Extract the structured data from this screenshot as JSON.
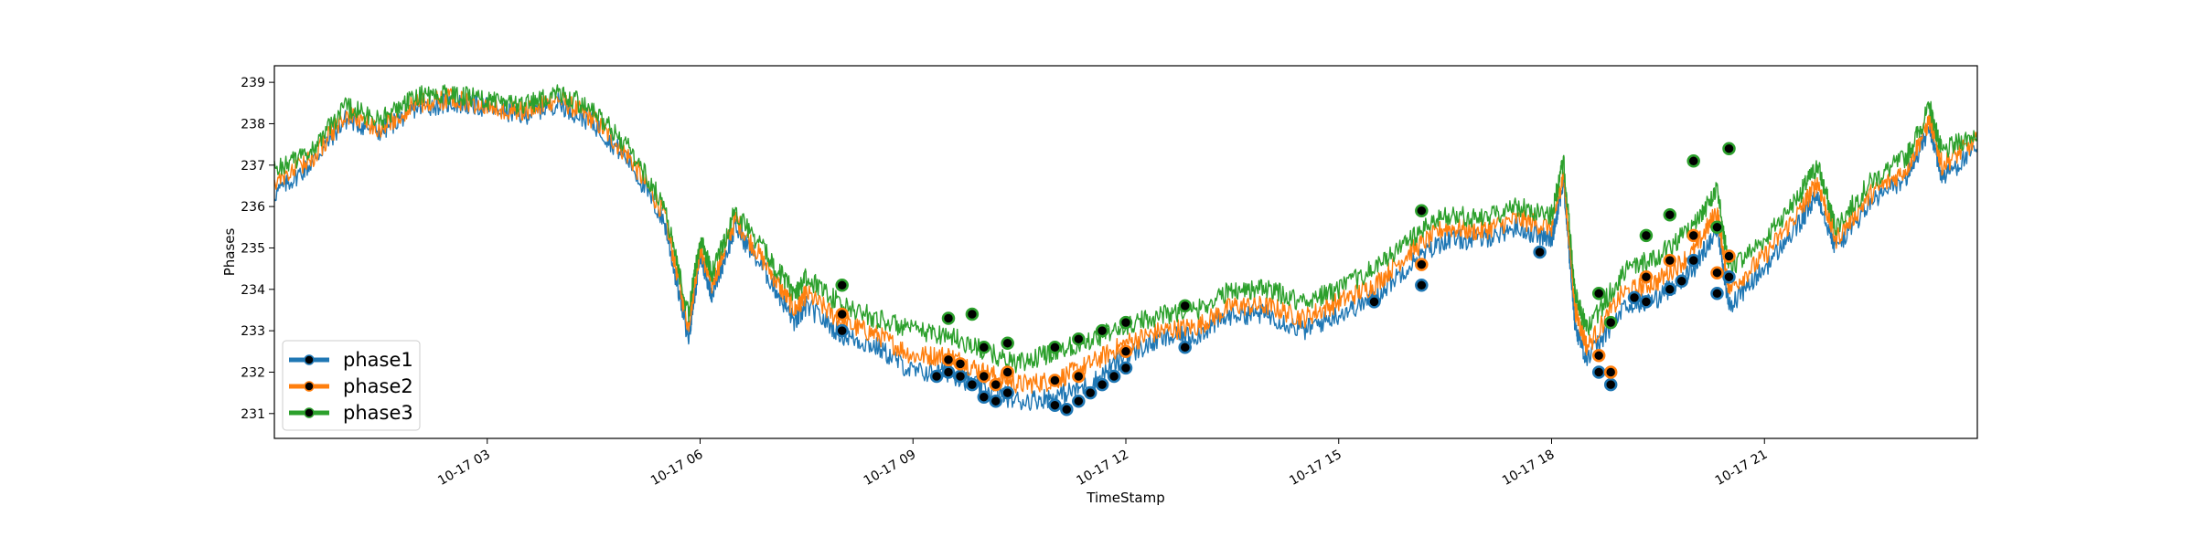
{
  "chart_data": {
    "type": "line",
    "title": "",
    "xlabel": "TimeStamp",
    "ylabel": "Phases",
    "ylim": [
      230.4,
      239.4
    ],
    "xlim": [
      "10-17 00:00",
      "10-17 24:00"
    ],
    "x_ticks": [
      "10-17 03",
      "10-17 06",
      "10-17 09",
      "10-17 12",
      "10-17 15",
      "10-17 18",
      "10-17 21"
    ],
    "y_ticks": [
      231,
      232,
      233,
      234,
      235,
      236,
      237,
      238,
      239
    ],
    "legend_position": "lower-left",
    "grid": false,
    "x": [
      "10-17 00:00",
      "10-17 00:30",
      "10-17 01:00",
      "10-17 01:30",
      "10-17 02:00",
      "10-17 02:30",
      "10-17 03:00",
      "10-17 03:30",
      "10-17 04:00",
      "10-17 04:30",
      "10-17 05:00",
      "10-17 05:30",
      "10-17 05:50",
      "10-17 06:00",
      "10-17 06:10",
      "10-17 06:30",
      "10-17 07:00",
      "10-17 07:20",
      "10-17 07:30",
      "10-17 08:00",
      "10-17 08:30",
      "10-17 09:00",
      "10-17 09:30",
      "10-17 10:00",
      "10-17 10:30",
      "10-17 11:00",
      "10-17 11:30",
      "10-17 12:00",
      "10-17 12:30",
      "10-17 13:00",
      "10-17 13:30",
      "10-17 14:00",
      "10-17 14:30",
      "10-17 15:00",
      "10-17 15:30",
      "10-17 16:00",
      "10-17 16:30",
      "10-17 17:00",
      "10-17 17:30",
      "10-17 18:00",
      "10-17 18:10",
      "10-17 18:20",
      "10-17 18:30",
      "10-17 19:00",
      "10-17 19:30",
      "10-17 20:00",
      "10-17 20:20",
      "10-17 20:30",
      "10-17 21:00",
      "10-17 21:30",
      "10-17 21:45",
      "10-17 22:00",
      "10-17 22:30",
      "10-17 23:00",
      "10-17 23:20",
      "10-17 23:30",
      "10-17 24:00"
    ],
    "series": [
      {
        "name": "phase1",
        "color": "#1f77b4",
        "values": [
          236.3,
          237.0,
          238.1,
          237.8,
          238.4,
          238.5,
          238.4,
          238.2,
          238.5,
          238.0,
          237.1,
          235.6,
          232.8,
          234.8,
          233.9,
          235.5,
          234.2,
          233.2,
          233.6,
          232.9,
          232.6,
          232.0,
          232.0,
          231.6,
          231.3,
          231.4,
          231.7,
          232.4,
          232.8,
          232.9,
          233.4,
          233.4,
          233.0,
          233.4,
          233.8,
          234.6,
          235.2,
          235.2,
          235.5,
          235.2,
          236.6,
          233.1,
          232.3,
          233.5,
          233.8,
          234.5,
          235.5,
          233.6,
          234.5,
          235.6,
          236.3,
          235.0,
          236.1,
          236.7,
          237.9,
          236.7,
          237.4
        ]
      },
      {
        "name": "phase2",
        "color": "#ff7f0e",
        "values": [
          236.6,
          237.1,
          238.2,
          237.9,
          238.5,
          238.6,
          238.4,
          238.3,
          238.6,
          238.1,
          237.2,
          235.8,
          233.1,
          235.0,
          234.1,
          235.7,
          234.4,
          233.5,
          233.9,
          233.2,
          232.9,
          232.4,
          232.4,
          232.0,
          231.7,
          231.8,
          232.2,
          232.7,
          233.0,
          233.1,
          233.6,
          233.6,
          233.3,
          233.7,
          234.1,
          234.9,
          235.5,
          235.4,
          235.7,
          235.5,
          236.8,
          233.5,
          232.6,
          233.9,
          234.2,
          234.9,
          235.9,
          234.0,
          234.8,
          235.9,
          236.6,
          235.2,
          236.3,
          236.9,
          238.1,
          237.0,
          237.6
        ]
      },
      {
        "name": "phase3",
        "color": "#2ca02c",
        "values": [
          236.9,
          237.3,
          238.4,
          238.1,
          238.7,
          238.7,
          238.6,
          238.4,
          238.8,
          238.3,
          237.4,
          236.0,
          233.4,
          235.2,
          234.4,
          235.9,
          234.7,
          233.9,
          234.3,
          233.6,
          233.3,
          233.0,
          232.9,
          232.5,
          232.2,
          232.5,
          232.8,
          233.1,
          233.4,
          233.5,
          234.0,
          234.0,
          233.7,
          234.0,
          234.5,
          235.2,
          235.8,
          235.7,
          236.0,
          235.8,
          237.1,
          233.9,
          233.0,
          234.4,
          234.8,
          235.5,
          236.4,
          234.5,
          235.2,
          236.3,
          237.0,
          235.5,
          236.6,
          237.2,
          238.4,
          237.3,
          237.8
        ]
      }
    ],
    "outliers": [
      {
        "series": "phase1",
        "x": [
          "10-17 08:00",
          "10-17 09:20",
          "10-17 09:30",
          "10-17 09:40",
          "10-17 09:50",
          "10-17 10:00",
          "10-17 10:10",
          "10-17 10:20",
          "10-17 11:00",
          "10-17 11:10",
          "10-17 11:20",
          "10-17 11:30",
          "10-17 11:40",
          "10-17 11:50",
          "10-17 12:00",
          "10-17 12:50",
          "10-17 15:30",
          "10-17 16:10",
          "10-17 17:50",
          "10-17 18:40",
          "10-17 18:50",
          "10-17 19:10",
          "10-17 19:20",
          "10-17 19:40",
          "10-17 19:50",
          "10-17 20:00",
          "10-17 20:20",
          "10-17 20:30"
        ],
        "values": [
          233.0,
          231.9,
          232.0,
          231.9,
          231.7,
          231.4,
          231.3,
          231.5,
          231.2,
          231.1,
          231.3,
          231.5,
          231.7,
          231.9,
          232.1,
          232.6,
          233.7,
          234.1,
          234.9,
          232.0,
          231.7,
          233.8,
          233.7,
          234.0,
          234.2,
          234.7,
          233.9,
          234.3
        ]
      },
      {
        "series": "phase2",
        "x": [
          "10-17 08:00",
          "10-17 09:30",
          "10-17 09:40",
          "10-17 10:00",
          "10-17 10:10",
          "10-17 10:20",
          "10-17 11:00",
          "10-17 11:20",
          "10-17 12:00",
          "10-17 16:10",
          "10-17 18:40",
          "10-17 18:50",
          "10-17 19:20",
          "10-17 19:40",
          "10-17 20:00",
          "10-17 20:20",
          "10-17 20:30"
        ],
        "values": [
          233.4,
          232.3,
          232.2,
          231.9,
          231.7,
          232.0,
          231.8,
          231.9,
          232.5,
          234.6,
          232.4,
          232.0,
          234.3,
          234.7,
          235.3,
          234.4,
          234.8
        ]
      },
      {
        "series": "phase3",
        "x": [
          "10-17 08:00",
          "10-17 09:30",
          "10-17 09:50",
          "10-17 10:00",
          "10-17 10:20",
          "10-17 11:00",
          "10-17 11:20",
          "10-17 11:40",
          "10-17 12:00",
          "10-17 12:50",
          "10-17 16:10",
          "10-17 18:40",
          "10-17 18:50",
          "10-17 19:20",
          "10-17 19:40",
          "10-17 20:00",
          "10-17 20:20",
          "10-17 20:30"
        ],
        "values": [
          234.1,
          233.3,
          233.4,
          232.6,
          232.7,
          232.6,
          232.8,
          233.0,
          233.2,
          233.6,
          235.9,
          233.9,
          233.2,
          235.3,
          235.8,
          237.1,
          235.5,
          237.4
        ]
      }
    ]
  }
}
